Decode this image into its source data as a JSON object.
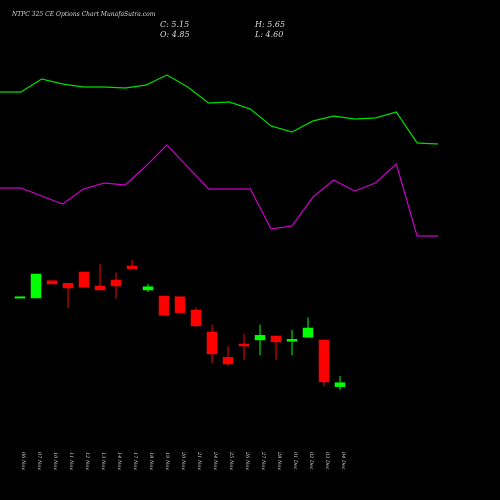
{
  "chart_data": [
    {
      "type": "candlestick",
      "title": "NTPC 325 CE Options Chart MunafaSutra.com",
      "ohlc_labels": {
        "close": "C: 5.15",
        "high": "H: 5.65",
        "open": "O: 4.85",
        "low": "L: 4.60"
      },
      "categories": [
        "06 Nov",
        "07 Nov",
        "10 Nov",
        "11 Nov",
        "12 Nov",
        "13 Nov",
        "14 Nov",
        "17 Nov",
        "18 Nov",
        "19 Nov",
        "20 Nov",
        "21 Nov",
        "24 Nov",
        "25 Nov",
        "26 Nov",
        "27 Nov",
        "28 Nov",
        "01 Dec",
        "02 Dec",
        "03 Dec",
        "04 Dec"
      ],
      "open": [
        11.6,
        11.5,
        12.8,
        12.6,
        13.45,
        12.4,
        12.85,
        13.9,
        12.1,
        11.65,
        11.6,
        10.6,
        8.95,
        7.05,
        8.05,
        8.35,
        8.65,
        8.25,
        8.55,
        8.35,
        4.85
      ],
      "high": [
        11.6,
        13.3,
        12.8,
        12.6,
        13.5,
        14.05,
        13.4,
        14.35,
        12.55,
        11.65,
        11.6,
        10.8,
        9.5,
        7.9,
        8.8,
        9.5,
        8.65,
        9.1,
        10.05,
        8.35,
        5.65
      ],
      "low": [
        11.6,
        11.5,
        12.55,
        10.75,
        12.3,
        12.1,
        11.45,
        13.7,
        11.95,
        10.2,
        10.4,
        9.4,
        6.6,
        6.4,
        6.85,
        7.2,
        6.85,
        7.2,
        8.55,
        4.9,
        4.6
      ],
      "close": [
        11.6,
        13.3,
        12.55,
        12.25,
        12.3,
        12.1,
        12.4,
        13.7,
        12.35,
        10.2,
        10.4,
        9.4,
        7.3,
        6.55,
        7.9,
        8.7,
        8.2,
        8.4,
        9.25,
        5.2,
        5.15
      ],
      "up_color": "#00ff00",
      "down_color": "#ff0000",
      "ylim": [
        4.2,
        14.8
      ]
    },
    {
      "type": "line",
      "series": [
        {
          "color": "#00dd00",
          "values": [
            158,
            158,
            171,
            166,
            163,
            163,
            162,
            165,
            175,
            163,
            147,
            148,
            141,
            124,
            118,
            129,
            134,
            131,
            132,
            138,
            107,
            106
          ]
        },
        {
          "color": "#cc00cc",
          "values": [
            62,
            62,
            54,
            46,
            61,
            67,
            65,
            84,
            105,
            83,
            61,
            61,
            61,
            21,
            24,
            53,
            70,
            59,
            67,
            86,
            14,
            14
          ]
        }
      ],
      "ylim": [
        0,
        200
      ]
    }
  ]
}
